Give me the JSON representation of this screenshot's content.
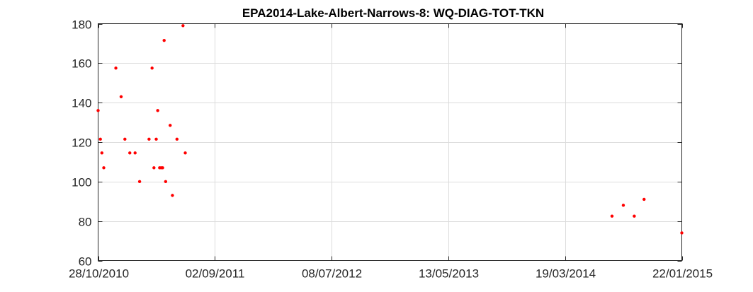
{
  "chart_data": {
    "type": "scatter",
    "title": "EPA2014-Lake-Albert-Narrows-8: WQ-DIAG-TOT-TKN",
    "xlabel": "",
    "ylabel": "",
    "x_type": "date",
    "xlim": [
      "2010-10-28",
      "2015-01-22"
    ],
    "ylim": [
      60,
      180
    ],
    "x_ticks": [
      "2010-10-28",
      "2011-09-02",
      "2012-07-08",
      "2013-05-13",
      "2014-03-19",
      "2015-01-22"
    ],
    "x_tick_labels": [
      "28/10/2010",
      "02/09/2011",
      "08/07/2012",
      "13/05/2013",
      "19/03/2014",
      "22/01/2015"
    ],
    "y_ticks": [
      60,
      80,
      100,
      120,
      140,
      160,
      180
    ],
    "y_tick_labels": [
      "60",
      "80",
      "100",
      "120",
      "140",
      "160",
      "180"
    ],
    "grid": true,
    "legend": "none",
    "marker_color": "#ff0000",
    "series": [
      {
        "points": [
          {
            "x": "2010-10-28",
            "y": 136
          },
          {
            "x": "2010-11-03",
            "y": 121.5
          },
          {
            "x": "2010-11-07",
            "y": 114.5
          },
          {
            "x": "2010-11-12",
            "y": 107
          },
          {
            "x": "2010-12-14",
            "y": 157.5
          },
          {
            "x": "2010-12-28",
            "y": 143
          },
          {
            "x": "2011-01-07",
            "y": 121.5
          },
          {
            "x": "2011-01-20",
            "y": 114.5
          },
          {
            "x": "2011-02-03",
            "y": 114.5
          },
          {
            "x": "2011-02-15",
            "y": 100
          },
          {
            "x": "2011-03-12",
            "y": 121.5
          },
          {
            "x": "2011-03-20",
            "y": 157.5
          },
          {
            "x": "2011-03-25",
            "y": 107
          },
          {
            "x": "2011-03-31",
            "y": 121.5
          },
          {
            "x": "2011-04-04",
            "y": 136
          },
          {
            "x": "2011-04-09",
            "y": 107
          },
          {
            "x": "2011-04-13",
            "y": 107
          },
          {
            "x": "2011-04-17",
            "y": 107
          },
          {
            "x": "2011-04-21",
            "y": 171.5
          },
          {
            "x": "2011-04-25",
            "y": 100
          },
          {
            "x": "2011-05-07",
            "y": 128.5
          },
          {
            "x": "2011-05-13",
            "y": 93
          },
          {
            "x": "2011-05-25",
            "y": 121.5
          },
          {
            "x": "2011-06-10",
            "y": 179
          },
          {
            "x": "2011-06-16",
            "y": 114.5
          },
          {
            "x": "2014-07-21",
            "y": 82.5
          },
          {
            "x": "2014-08-20",
            "y": 88
          },
          {
            "x": "2014-09-18",
            "y": 82.5
          },
          {
            "x": "2014-10-14",
            "y": 91
          },
          {
            "x": "2015-01-22",
            "y": 74
          }
        ]
      }
    ]
  }
}
